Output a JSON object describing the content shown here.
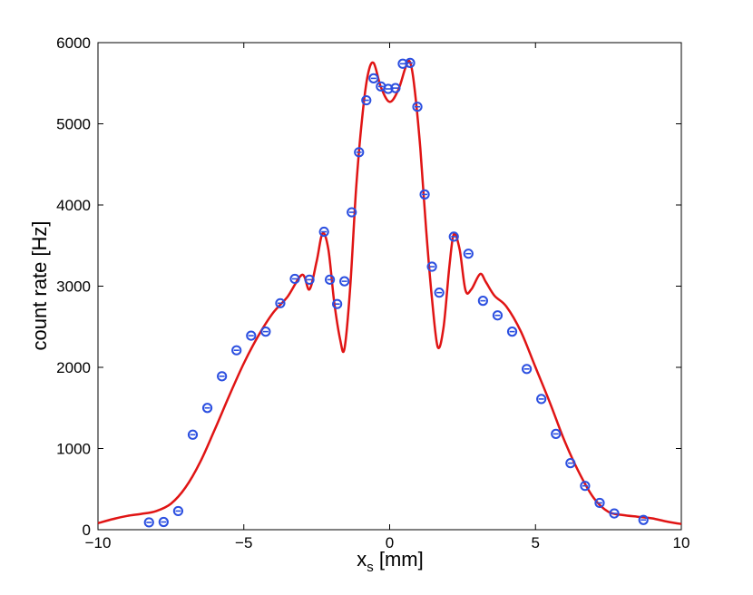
{
  "chart_data": {
    "type": "scatter",
    "title": "",
    "xlabel": "x",
    "xlabel_sub": "s",
    "xlabel_unit": " [mm]",
    "ylabel": "count rate [Hz]",
    "xlim": [
      -10,
      10
    ],
    "ylim": [
      0,
      6000
    ],
    "xticks": [
      -10,
      -5,
      0,
      5,
      10
    ],
    "xtick_labels": [
      "−10",
      "−5",
      "0",
      "5",
      "10"
    ],
    "yticks": [
      0,
      1000,
      2000,
      3000,
      4000,
      5000,
      6000
    ],
    "ytick_labels": [
      "0",
      "1000",
      "2000",
      "3000",
      "4000",
      "5000",
      "6000"
    ],
    "grid": false,
    "series": [
      {
        "kind": "points",
        "color": "#2b4fe0",
        "points": [
          [
            -8.25,
            90
          ],
          [
            -7.75,
            95
          ],
          [
            -7.25,
            230
          ],
          [
            -6.75,
            1170
          ],
          [
            -6.25,
            1500
          ],
          [
            -5.75,
            1890
          ],
          [
            -5.25,
            2210
          ],
          [
            -4.75,
            2390
          ],
          [
            -4.25,
            2440
          ],
          [
            -3.75,
            2790
          ],
          [
            -3.25,
            3090
          ],
          [
            -2.75,
            3080
          ],
          [
            -2.25,
            3670
          ],
          [
            -2.05,
            3080
          ],
          [
            -1.8,
            2780
          ],
          [
            -1.55,
            3060
          ],
          [
            -1.3,
            3910
          ],
          [
            -1.05,
            4650
          ],
          [
            -0.8,
            5290
          ],
          [
            -0.55,
            5560
          ],
          [
            -0.3,
            5460
          ],
          [
            -0.05,
            5430
          ],
          [
            0.2,
            5440
          ],
          [
            0.45,
            5740
          ],
          [
            0.7,
            5750
          ],
          [
            0.95,
            5210
          ],
          [
            1.2,
            4130
          ],
          [
            1.45,
            3240
          ],
          [
            1.7,
            2920
          ],
          [
            2.2,
            3610
          ],
          [
            2.7,
            3400
          ],
          [
            3.2,
            2820
          ],
          [
            3.7,
            2640
          ],
          [
            4.2,
            2440
          ],
          [
            4.7,
            1980
          ],
          [
            5.2,
            1610
          ],
          [
            5.7,
            1180
          ],
          [
            6.2,
            820
          ],
          [
            6.7,
            540
          ],
          [
            7.2,
            330
          ],
          [
            7.7,
            200
          ],
          [
            8.7,
            120
          ]
        ]
      },
      {
        "kind": "line",
        "color": "#e01414",
        "points": [
          [
            -10,
            80
          ],
          [
            -9.5,
            130
          ],
          [
            -9,
            170
          ],
          [
            -8.5,
            195
          ],
          [
            -8,
            230
          ],
          [
            -7.5,
            320
          ],
          [
            -7,
            520
          ],
          [
            -6.5,
            830
          ],
          [
            -6,
            1230
          ],
          [
            -5.5,
            1650
          ],
          [
            -5,
            2050
          ],
          [
            -4.5,
            2390
          ],
          [
            -4,
            2670
          ],
          [
            -3.5,
            2870
          ],
          [
            -3,
            3140
          ],
          [
            -2.75,
            2960
          ],
          [
            -2.5,
            3310
          ],
          [
            -2.3,
            3650
          ],
          [
            -2.1,
            3450
          ],
          [
            -1.9,
            2800
          ],
          [
            -1.7,
            2350
          ],
          [
            -1.55,
            2230
          ],
          [
            -1.35,
            3000
          ],
          [
            -1.15,
            4200
          ],
          [
            -0.95,
            5050
          ],
          [
            -0.75,
            5600
          ],
          [
            -0.55,
            5750
          ],
          [
            -0.3,
            5450
          ],
          [
            0,
            5270
          ],
          [
            0.3,
            5420
          ],
          [
            0.55,
            5700
          ],
          [
            0.7,
            5760
          ],
          [
            0.85,
            5450
          ],
          [
            1.05,
            4700
          ],
          [
            1.25,
            3700
          ],
          [
            1.45,
            2850
          ],
          [
            1.65,
            2250
          ],
          [
            1.85,
            2500
          ],
          [
            2.05,
            3250
          ],
          [
            2.2,
            3640
          ],
          [
            2.4,
            3450
          ],
          [
            2.6,
            2950
          ],
          [
            2.8,
            2960
          ],
          [
            3.1,
            3150
          ],
          [
            3.3,
            3050
          ],
          [
            3.6,
            2880
          ],
          [
            4,
            2750
          ],
          [
            4.5,
            2440
          ],
          [
            5,
            2000
          ],
          [
            5.5,
            1560
          ],
          [
            6,
            1090
          ],
          [
            6.5,
            700
          ],
          [
            7,
            390
          ],
          [
            7.5,
            220
          ],
          [
            8,
            180
          ],
          [
            8.5,
            160
          ],
          [
            9,
            140
          ],
          [
            9.5,
            100
          ],
          [
            10,
            70
          ]
        ]
      }
    ]
  }
}
